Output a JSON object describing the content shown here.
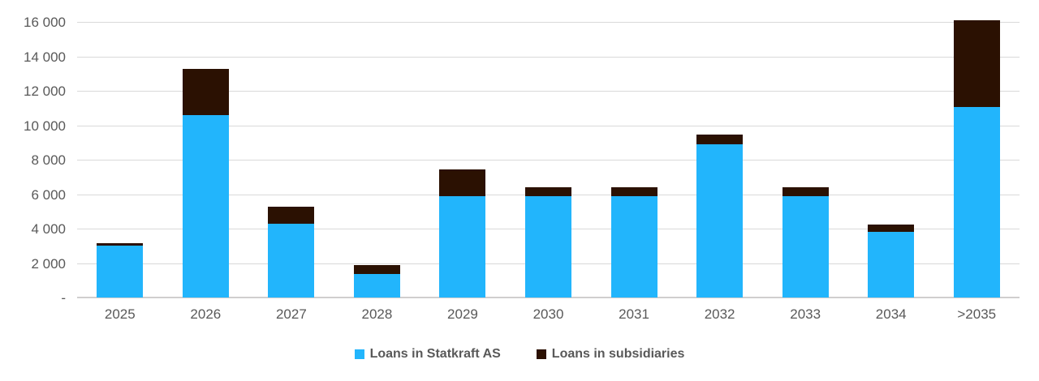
{
  "chart_data": {
    "type": "bar",
    "stacked": true,
    "title": "",
    "xlabel": "",
    "ylabel": "",
    "categories": [
      "2025",
      "2026",
      "2027",
      "2028",
      "2029",
      "2030",
      "2031",
      "2032",
      "2033",
      "2034",
      ">2035"
    ],
    "series": [
      {
        "name": "Loans in Statkraft AS",
        "color": "#22b5fc",
        "values": [
          3000,
          10600,
          4300,
          1350,
          5900,
          5900,
          5900,
          8900,
          5900,
          3800,
          11050
        ]
      },
      {
        "name": "Loans in subsidiaries",
        "color": "#2b1102",
        "values": [
          150,
          2650,
          950,
          550,
          1550,
          500,
          500,
          550,
          500,
          450,
          5050
        ]
      }
    ],
    "ylim": [
      0,
      16000
    ],
    "ytick_step": 2000,
    "ytick_labels": [
      "-",
      "2 000",
      "4 000",
      "6 000",
      "8 000",
      "10 000",
      "12 000",
      "14 000",
      "16 000"
    ],
    "grid": true,
    "legend_position": "bottom",
    "colors": {
      "axis_text": "#595959",
      "gridline": "#d9d9d9",
      "background": "#ffffff"
    }
  }
}
